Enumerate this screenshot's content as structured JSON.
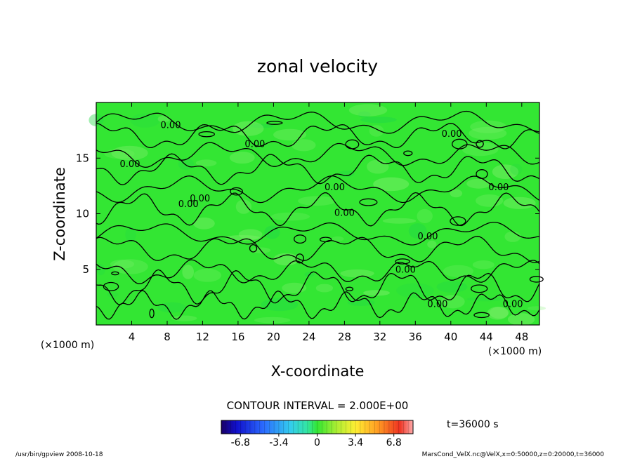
{
  "chart_data": {
    "type": "heatmap",
    "title": "zonal velocity",
    "xlabel": "X-coordinate",
    "ylabel": "Z-coordinate",
    "x_unit": "(×1000 m)",
    "y_unit": "(×1000 m)",
    "xlim": [
      0,
      50
    ],
    "ylim": [
      0,
      20
    ],
    "x_ticks": [
      4,
      8,
      12,
      16,
      20,
      24,
      28,
      32,
      36,
      40,
      44,
      48
    ],
    "y_ticks": [
      5,
      10,
      15
    ],
    "contour_interval": "CONTOUR INTERVAL = 2.000E+00",
    "contour_label": "0.00",
    "contour_label_positions": [
      {
        "x": 8.4,
        "z": 17.7
      },
      {
        "x": 3.8,
        "z": 14.2
      },
      {
        "x": 17.9,
        "z": 16.0
      },
      {
        "x": 10.4,
        "z": 10.6
      },
      {
        "x": 11.7,
        "z": 11.1
      },
      {
        "x": 26.9,
        "z": 12.1
      },
      {
        "x": 28.0,
        "z": 9.8
      },
      {
        "x": 40.1,
        "z": 16.9
      },
      {
        "x": 45.4,
        "z": 12.1
      },
      {
        "x": 37.4,
        "z": 7.7
      },
      {
        "x": 34.9,
        "z": 4.7
      },
      {
        "x": 38.5,
        "z": 1.6
      },
      {
        "x": 47.0,
        "z": 1.6
      }
    ],
    "colorbar": {
      "ticks": [
        "-6.8",
        "-3.4",
        "0",
        "3.4",
        "6.8"
      ],
      "range": [
        -8.5,
        8.5
      ]
    },
    "time_label": "t=36000 s"
  },
  "footer": {
    "left": "/usr/bin/gpview  2008-10-18",
    "right": "MarsCond_VelX.nc@VelX,x=0:50000,z=0:20000,t=36000"
  },
  "colors": {
    "field": "#33e633",
    "field_light": "#66ee55",
    "contour": "#000000"
  }
}
